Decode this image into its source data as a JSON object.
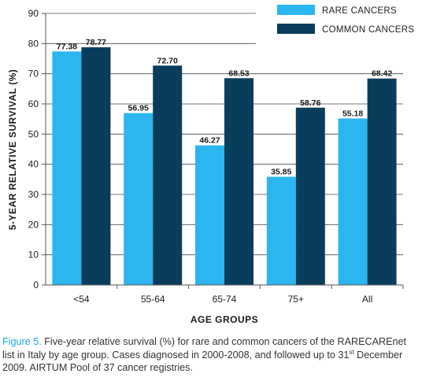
{
  "chart_data": {
    "type": "bar",
    "xlabel": "AGE GROUPS",
    "ylabel": "5-YEAR RELATIVE SURVIVAL (%)",
    "ylim": [
      0,
      90
    ],
    "yticks": [
      "0",
      "10",
      "20",
      "30",
      "40",
      "50",
      "60",
      "70",
      "80",
      "90"
    ],
    "grid": true,
    "legend_position": "top-right",
    "categories": [
      "<54",
      "55-64",
      "65-74",
      "75+",
      "All"
    ],
    "series": [
      {
        "name": "RARE CANCERS",
        "color": "#2bb6ef",
        "values": [
          77.38,
          56.95,
          46.27,
          35.85,
          55.18
        ],
        "labels": [
          "77.38",
          "56.95",
          "46.27",
          "35.85",
          "55.18"
        ]
      },
      {
        "name": "COMMON CANCERS",
        "color": "#0a3d5c",
        "values": [
          78.77,
          72.7,
          68.53,
          58.76,
          68.42
        ],
        "labels": [
          "78.77",
          "72.70",
          "68.53",
          "58.76",
          "68.42"
        ]
      }
    ]
  },
  "caption": {
    "label": "Figure 5.",
    "line1": "Five-year relative survival (%) for rare and common cancers of the RARECAREnet",
    "line2_a": "list in Italy by age group. Cases diagnosed in 2000-2008, and followed up to 31",
    "line2_sup": "st",
    "line2_b": " December",
    "line3": "2009. AIRTUM Pool of 37 cancer registries."
  }
}
